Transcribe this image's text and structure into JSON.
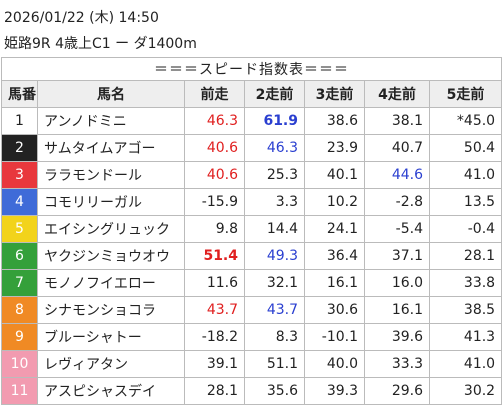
{
  "header": {
    "datetime": "2026/01/22 (木) 14:50",
    "race": "姫路9R 4歳上C1 ー ダ1400m"
  },
  "table": {
    "title": "＝＝＝スピード指数表＝＝＝",
    "columns": [
      "馬番",
      "馬名",
      "前走",
      "2走前",
      "3走前",
      "4走前",
      "5走前"
    ],
    "rows": [
      [
        "1",
        "アンノドミニ",
        "46.3",
        "61.9",
        "38.6",
        "38.1",
        "*45.0"
      ],
      [
        "2",
        "サムタイムアゴー",
        "40.6",
        "46.3",
        "23.9",
        "40.7",
        "50.4"
      ],
      [
        "3",
        "ララモンドール",
        "40.6",
        "25.3",
        "40.1",
        "44.6",
        "41.0"
      ],
      [
        "4",
        "コモリリーガル",
        "-15.9",
        "3.3",
        "10.2",
        "-2.8",
        "13.5"
      ],
      [
        "5",
        "エイシングリュック",
        "9.8",
        "14.4",
        "24.1",
        "-5.4",
        "-0.4"
      ],
      [
        "6",
        "ヤクジンミョウオウ",
        "51.4",
        "49.3",
        "36.4",
        "37.1",
        "28.1"
      ],
      [
        "7",
        "モノノフイエロー",
        "11.6",
        "32.1",
        "16.1",
        "16.0",
        "33.8"
      ],
      [
        "8",
        "シナモンショコラ",
        "43.7",
        "43.7",
        "30.6",
        "16.1",
        "38.5"
      ],
      [
        "9",
        "ブルーシャトー",
        "-18.2",
        "8.3",
        "-10.1",
        "39.6",
        "41.3"
      ],
      [
        "10",
        "レヴィアタン",
        "39.1",
        "51.1",
        "40.0",
        "33.3",
        "41.0"
      ],
      [
        "11",
        "アスピシャスデイ",
        "28.1",
        "35.6",
        "39.3",
        "29.6",
        "30.2"
      ]
    ]
  }
}
